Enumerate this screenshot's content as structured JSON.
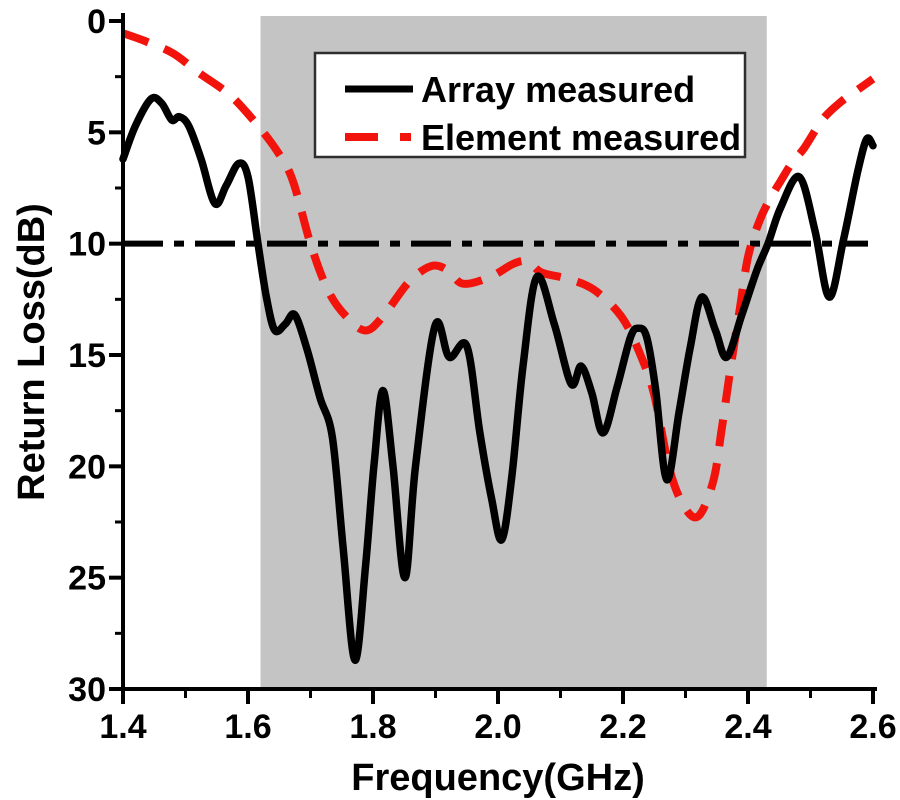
{
  "chart_data": {
    "type": "line",
    "title": "",
    "xlabel": "Frequency(GHz)",
    "ylabel": "Return Loss(dB)",
    "xlim": [
      1.4,
      2.6
    ],
    "ylim": [
      0,
      30
    ],
    "y_inverted": true,
    "grid": false,
    "x_ticks_major": [
      1.4,
      1.6,
      1.8,
      2.0,
      2.2,
      2.4,
      2.6
    ],
    "x_tick_labels": [
      "1.4",
      "1.6",
      "1.8",
      "2.0",
      "2.2",
      "2.4",
      "2.6"
    ],
    "x_ticks_minor": [
      1.5,
      1.7,
      1.9,
      2.1,
      2.3,
      2.5
    ],
    "y_ticks_major": [
      0,
      5,
      10,
      15,
      20,
      25,
      30
    ],
    "y_tick_labels": [
      "0",
      "5",
      "10",
      "15",
      "20",
      "25",
      "30"
    ],
    "y_ticks_minor": [
      2.5,
      7.5,
      12.5,
      17.5,
      22.5,
      27.5
    ],
    "shaded_band": {
      "x_start": 1.62,
      "x_end": 2.43,
      "color": "#c4c4c4"
    },
    "reference_line": {
      "y": 10,
      "style": "dash-dot",
      "color": "#000000"
    },
    "legend": {
      "position": "top-center",
      "border_color": "#2e2e2e",
      "background": "#ffffff"
    },
    "series": [
      {
        "name": "Array measured",
        "color": "#000000",
        "line_style": "solid",
        "points": [
          [
            1.4,
            6.2
          ],
          [
            1.42,
            4.7
          ],
          [
            1.445,
            3.5
          ],
          [
            1.462,
            3.7
          ],
          [
            1.478,
            4.45
          ],
          [
            1.49,
            4.3
          ],
          [
            1.505,
            4.7
          ],
          [
            1.525,
            6.2
          ],
          [
            1.547,
            8.2
          ],
          [
            1.565,
            7.4
          ],
          [
            1.585,
            6.4
          ],
          [
            1.6,
            7.0
          ],
          [
            1.616,
            10.0
          ],
          [
            1.63,
            12.5
          ],
          [
            1.643,
            13.9
          ],
          [
            1.66,
            13.6
          ],
          [
            1.675,
            13.2
          ],
          [
            1.695,
            14.8
          ],
          [
            1.715,
            16.9
          ],
          [
            1.735,
            18.7
          ],
          [
            1.752,
            23.6
          ],
          [
            1.771,
            28.7
          ],
          [
            1.788,
            24.5
          ],
          [
            1.802,
            19.8
          ],
          [
            1.816,
            16.6
          ],
          [
            1.832,
            20.0
          ],
          [
            1.851,
            25.0
          ],
          [
            1.868,
            20.0
          ],
          [
            1.899,
            13.7
          ],
          [
            1.922,
            15.1
          ],
          [
            1.95,
            14.6
          ],
          [
            1.971,
            18.5
          ],
          [
            1.99,
            21.5
          ],
          [
            2.006,
            23.3
          ],
          [
            2.022,
            20.5
          ],
          [
            2.04,
            15.5
          ],
          [
            2.062,
            11.5
          ],
          [
            2.09,
            13.6
          ],
          [
            2.117,
            16.3
          ],
          [
            2.133,
            15.5
          ],
          [
            2.15,
            16.7
          ],
          [
            2.168,
            18.5
          ],
          [
            2.19,
            16.5
          ],
          [
            2.212,
            14.2
          ],
          [
            2.225,
            13.8
          ],
          [
            2.238,
            14.2
          ],
          [
            2.252,
            16.5
          ],
          [
            2.27,
            20.6
          ],
          [
            2.29,
            17.5
          ],
          [
            2.308,
            14.6
          ],
          [
            2.326,
            12.4
          ],
          [
            2.348,
            13.9
          ],
          [
            2.366,
            15.1
          ],
          [
            2.39,
            13.2
          ],
          [
            2.414,
            11.2
          ],
          [
            2.432,
            10.0
          ],
          [
            2.452,
            8.4
          ],
          [
            2.482,
            7.0
          ],
          [
            2.507,
            9.4
          ],
          [
            2.53,
            12.4
          ],
          [
            2.553,
            9.8
          ],
          [
            2.576,
            6.7
          ],
          [
            2.59,
            5.3
          ],
          [
            2.6,
            5.6
          ]
        ]
      },
      {
        "name": "Element measured",
        "color": "#f2140c",
        "line_style": "dashed",
        "points": [
          [
            1.4,
            0.55
          ],
          [
            1.435,
            0.9
          ],
          [
            1.48,
            1.45
          ],
          [
            1.52,
            2.3
          ],
          [
            1.57,
            3.3
          ],
          [
            1.61,
            4.5
          ],
          [
            1.648,
            5.9
          ],
          [
            1.672,
            7.2
          ],
          [
            1.7,
            10.0
          ],
          [
            1.728,
            12.1
          ],
          [
            1.758,
            13.3
          ],
          [
            1.788,
            13.9
          ],
          [
            1.815,
            13.3
          ],
          [
            1.858,
            11.7
          ],
          [
            1.894,
            11.0
          ],
          [
            1.92,
            11.2
          ],
          [
            1.944,
            11.8
          ],
          [
            1.987,
            11.5
          ],
          [
            2.025,
            10.9
          ],
          [
            2.048,
            10.8
          ],
          [
            2.07,
            11.3
          ],
          [
            2.115,
            11.6
          ],
          [
            2.155,
            12.1
          ],
          [
            2.198,
            13.3
          ],
          [
            2.228,
            15.0
          ],
          [
            2.25,
            16.8
          ],
          [
            2.275,
            20.2
          ],
          [
            2.3,
            21.9
          ],
          [
            2.322,
            22.2
          ],
          [
            2.345,
            20.6
          ],
          [
            2.358,
            18.3
          ],
          [
            2.372,
            15.6
          ],
          [
            2.387,
            12.9
          ],
          [
            2.4,
            10.6
          ],
          [
            2.418,
            9.0
          ],
          [
            2.435,
            8.0
          ],
          [
            2.452,
            7.2
          ],
          [
            2.472,
            6.3
          ],
          [
            2.49,
            5.7
          ],
          [
            2.52,
            4.4
          ],
          [
            2.55,
            3.6
          ],
          [
            2.575,
            3.1
          ],
          [
            2.6,
            2.6
          ]
        ]
      }
    ]
  }
}
